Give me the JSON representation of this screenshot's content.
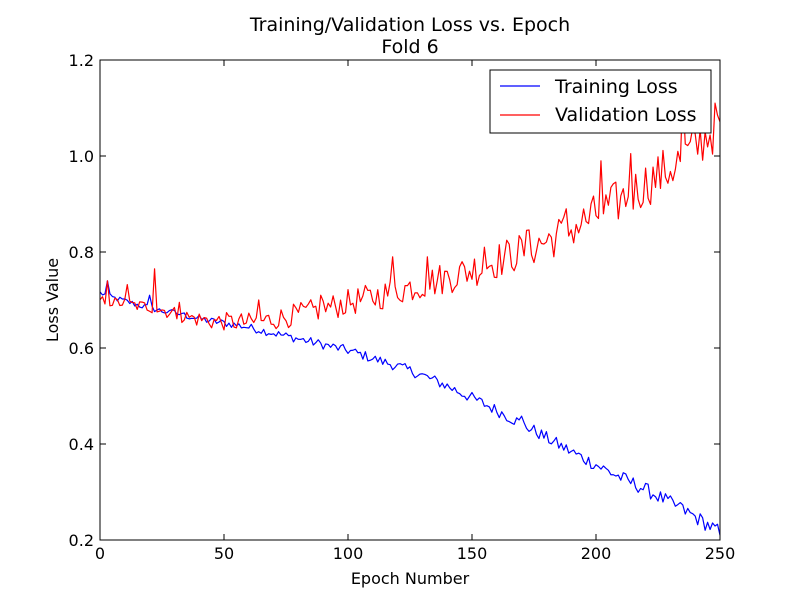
{
  "chart_data": {
    "type": "line",
    "title": "Training/Validation Loss vs. Epoch",
    "subtitle": "Fold 6",
    "xlabel": "Epoch Number",
    "ylabel": "Loss Value",
    "xlim": [
      0,
      250
    ],
    "ylim": [
      0.2,
      1.2
    ],
    "xticks": [
      0,
      50,
      100,
      150,
      200,
      250
    ],
    "xtick_labels": [
      "0",
      "50",
      "100",
      "150",
      "200",
      "250"
    ],
    "yticks": [
      0.2,
      0.4,
      0.6,
      0.8,
      1.0,
      1.2
    ],
    "ytick_labels": [
      "0.2",
      "0.4",
      "0.6",
      "0.8",
      "1.0",
      "1.2"
    ],
    "grid": false,
    "legend_position": "top-right",
    "series": [
      {
        "name": "Training Loss",
        "color": "#0000ff",
        "x": [
          0,
          5,
          10,
          15,
          20,
          25,
          30,
          35,
          40,
          45,
          50,
          55,
          60,
          65,
          70,
          75,
          80,
          85,
          90,
          95,
          100,
          105,
          110,
          115,
          120,
          125,
          130,
          135,
          140,
          145,
          150,
          155,
          160,
          165,
          170,
          175,
          180,
          185,
          190,
          195,
          200,
          205,
          210,
          215,
          220,
          225,
          230,
          235,
          240,
          245,
          250
        ],
        "y": [
          0.715,
          0.705,
          0.698,
          0.69,
          0.684,
          0.677,
          0.673,
          0.667,
          0.661,
          0.656,
          0.652,
          0.648,
          0.643,
          0.637,
          0.631,
          0.625,
          0.619,
          0.613,
          0.607,
          0.601,
          0.595,
          0.587,
          0.578,
          0.57,
          0.562,
          0.553,
          0.543,
          0.532,
          0.521,
          0.508,
          0.496,
          0.483,
          0.47,
          0.456,
          0.442,
          0.428,
          0.413,
          0.398,
          0.384,
          0.37,
          0.357,
          0.343,
          0.33,
          0.318,
          0.305,
          0.291,
          0.277,
          0.263,
          0.248,
          0.232,
          0.215
        ],
        "highlights": [
          [
            3,
            0.74
          ],
          [
            20,
            0.71
          ],
          [
            28,
            0.678
          ],
          [
            33,
            0.672
          ],
          [
            170,
            0.458
          ],
          [
            235,
            0.273
          ],
          [
            250,
            0.21
          ]
        ]
      },
      {
        "name": "Validation Loss",
        "color": "#ff0000",
        "x": [
          0,
          5,
          10,
          15,
          20,
          25,
          30,
          35,
          40,
          45,
          50,
          55,
          60,
          65,
          70,
          75,
          80,
          85,
          90,
          95,
          100,
          105,
          110,
          115,
          120,
          125,
          130,
          135,
          140,
          145,
          150,
          155,
          160,
          165,
          170,
          175,
          180,
          185,
          190,
          195,
          200,
          205,
          210,
          215,
          220,
          225,
          230,
          235,
          240,
          245,
          250
        ],
        "y": [
          0.7,
          0.695,
          0.693,
          0.688,
          0.686,
          0.68,
          0.672,
          0.665,
          0.66,
          0.656,
          0.655,
          0.654,
          0.653,
          0.656,
          0.66,
          0.665,
          0.67,
          0.676,
          0.682,
          0.688,
          0.694,
          0.7,
          0.705,
          0.712,
          0.72,
          0.727,
          0.733,
          0.74,
          0.747,
          0.755,
          0.763,
          0.772,
          0.782,
          0.792,
          0.802,
          0.812,
          0.823,
          0.835,
          0.848,
          0.862,
          0.877,
          0.892,
          0.908,
          0.925,
          0.942,
          0.958,
          0.975,
          0.995,
          1.018,
          1.045,
          1.07
        ],
        "highlights": [
          [
            3,
            0.74
          ],
          [
            11,
            0.732
          ],
          [
            22,
            0.765
          ],
          [
            32,
            0.695
          ],
          [
            64,
            0.7
          ],
          [
            89,
            0.71
          ],
          [
            118,
            0.79
          ],
          [
            132,
            0.79
          ],
          [
            155,
            0.81
          ],
          [
            172,
            0.845
          ],
          [
            188,
            0.89
          ],
          [
            202,
            0.99
          ],
          [
            214,
            1.005
          ],
          [
            235,
            1.13
          ],
          [
            249,
            1.085
          ]
        ]
      }
    ]
  }
}
